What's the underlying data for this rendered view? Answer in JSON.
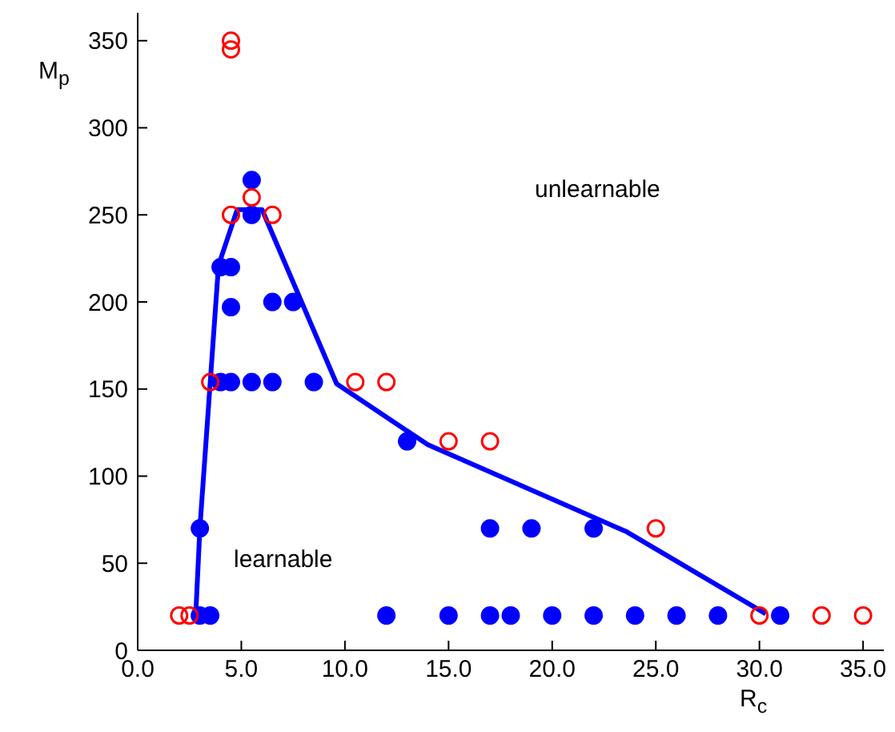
{
  "chart_data": {
    "type": "scatter",
    "xlabel": "R$_{c}$",
    "ylabel": "M$_{p}$",
    "xlim": [
      0,
      36
    ],
    "ylim": [
      0,
      366
    ],
    "xticks": [
      {
        "value": 0,
        "label": "0.0"
      },
      {
        "value": 5,
        "label": "5.0"
      },
      {
        "value": 10,
        "label": "10.0"
      },
      {
        "value": 15,
        "label": "15.0"
      },
      {
        "value": 20,
        "label": "20.0"
      },
      {
        "value": 25,
        "label": "25.0"
      },
      {
        "value": 30,
        "label": "30.0"
      },
      {
        "value": 35,
        "label": "35.0"
      }
    ],
    "yticks": [
      0,
      50,
      100,
      150,
      200,
      250,
      300,
      350
    ],
    "marker": "circle",
    "series": [
      {
        "color": "#0000ff",
        "x": [
          3,
          3.5,
          12,
          15,
          17,
          18,
          20,
          22,
          24,
          26,
          28,
          31,
          3,
          17,
          19,
          22,
          13,
          4,
          4.5,
          5.5,
          6.5,
          8.5,
          4.5,
          6.5,
          7.5,
          4,
          4.5,
          5.5,
          5.5
        ],
        "values": [
          20,
          20,
          20,
          20,
          20,
          20,
          20,
          20,
          20,
          20,
          20,
          20,
          70,
          70,
          70,
          70,
          120,
          154,
          154,
          154,
          154,
          154,
          197,
          200,
          200,
          220,
          220,
          250,
          270
        ]
      },
      {
        "color": "#ff0000",
        "x": [
          2,
          2.5,
          30,
          33,
          35,
          25,
          15,
          17,
          3.5,
          10.5,
          12,
          4.5,
          6.5,
          5.5,
          4.5,
          4.5
        ],
        "values": [
          20,
          20,
          20,
          20,
          20,
          70,
          120,
          120,
          154,
          154,
          154,
          250,
          250,
          260,
          345,
          350
        ]
      },
      {
        "type": "line",
        "color": "#0000ff",
        "line_style": "solid",
        "marker": "none",
        "x": [
          2.8,
          3,
          3.9,
          4.8,
          6,
          9.6,
          14,
          23.6,
          30.3
        ],
        "values": [
          20,
          70,
          221,
          253,
          253,
          153,
          118,
          68,
          21
        ]
      }
    ],
    "annotations": [
      "learnable",
      "unlearnable"
    ]
  }
}
